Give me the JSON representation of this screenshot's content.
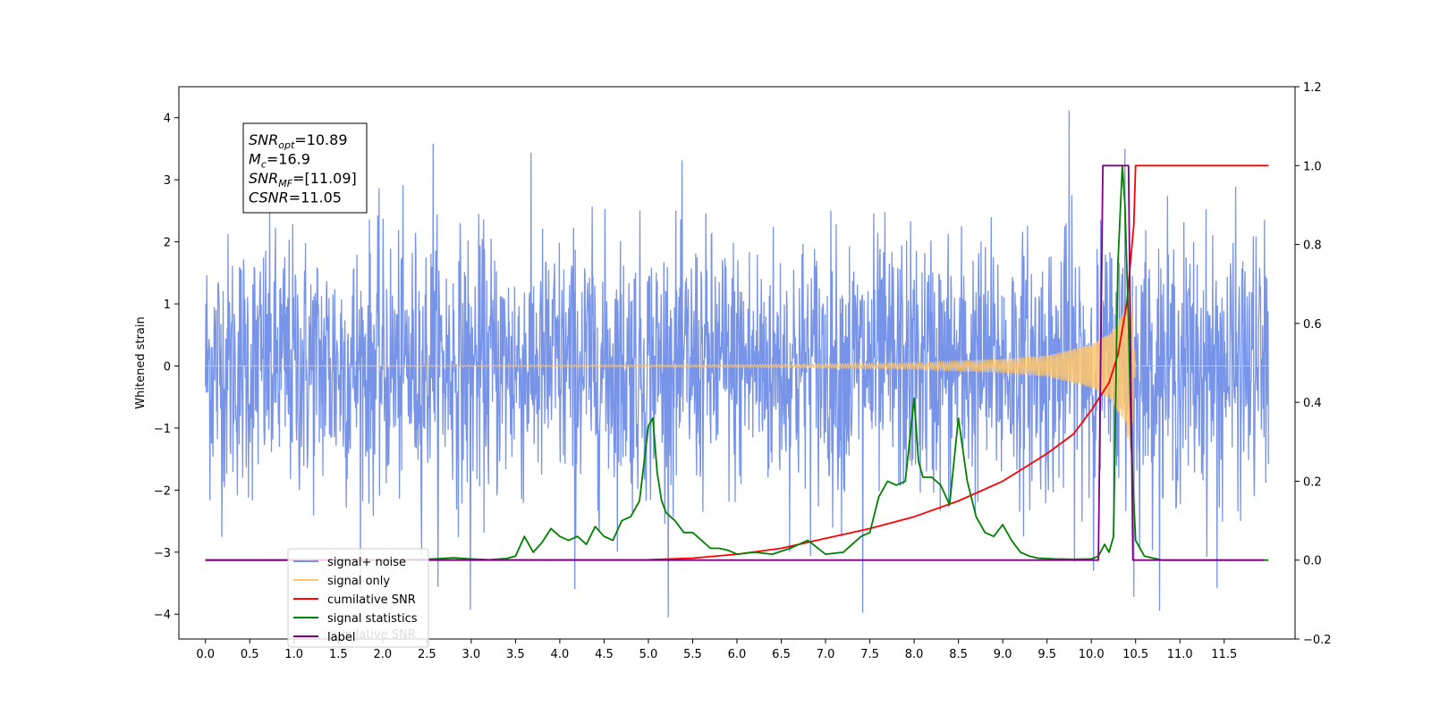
{
  "chart_data": {
    "type": "line",
    "ylabel": "Whitened strain",
    "x_ticks": [
      "0.0",
      "0.5",
      "1.0",
      "1.5",
      "2.0",
      "2.5",
      "3.0",
      "3.5",
      "4.0",
      "4.5",
      "5.0",
      "5.5",
      "6.0",
      "6.5",
      "7.0",
      "7.5",
      "8.0",
      "8.5",
      "9.0",
      "9.5",
      "10.0",
      "10.5",
      "11.0",
      "11.5"
    ],
    "xlim": [
      -0.3,
      12.3
    ],
    "left_axis": {
      "ylim": [
        -4.4,
        4.5
      ],
      "ticks": [
        "4",
        "3",
        "2",
        "1",
        "0",
        "−1",
        "−2",
        "−3",
        "−4"
      ]
    },
    "right_axis": {
      "ylim": [
        -0.2,
        1.2
      ],
      "ticks": [
        "1.2",
        "1.0",
        "0.8",
        "0.6",
        "0.4",
        "0.2",
        "0.0",
        "−0.2"
      ]
    },
    "annotation": {
      "lines": [
        {
          "base": "SNR",
          "sub": "opt",
          "value": "=10.89"
        },
        {
          "base": "M",
          "sub": "c",
          "value": "=16.9"
        },
        {
          "base": "SNR",
          "sub": "MF",
          "value": "=[11.09]"
        },
        {
          "base": "CSNR",
          "sub": "",
          "value": "=11.05"
        }
      ]
    },
    "legend": {
      "placement": "lower-left",
      "entries": [
        {
          "label": "signal+ noise",
          "color": "#7894e8"
        },
        {
          "label": "signal only",
          "color": "#ffc76b"
        },
        {
          "label": "cumilative SNR",
          "color": "#ff0000"
        },
        {
          "label": "signal statistics",
          "color": "#008000"
        },
        {
          "label": "label",
          "color": "#800080"
        }
      ],
      "ghost_text": "cumilative SNR"
    },
    "series": [
      {
        "name": "signal+ noise",
        "axis": "left",
        "color": "#7894e8",
        "noise": {
          "x_range": [
            0,
            12.0
          ],
          "sigma": 1.05,
          "samples": 2400
        },
        "spikes": [
          [
            9.75,
            4.12
          ],
          [
            10.38,
            3.5
          ],
          [
            10.48,
            -3.72
          ],
          [
            2.99,
            -3.93
          ],
          [
            7.42,
            -3.98
          ],
          [
            4.17,
            -3.6
          ],
          [
            11.42,
            -3.58
          ],
          [
            2.57,
            3.58
          ]
        ]
      },
      {
        "name": "signal only",
        "axis": "left",
        "color": "#ffc76b",
        "envelope": [
          [
            0.0,
            0.0
          ],
          [
            6.0,
            0.02
          ],
          [
            8.0,
            0.05
          ],
          [
            9.0,
            0.11
          ],
          [
            9.5,
            0.17
          ],
          [
            10.0,
            0.35
          ],
          [
            10.2,
            0.52
          ],
          [
            10.35,
            0.85
          ],
          [
            10.45,
            1.45
          ],
          [
            10.5,
            0.0
          ],
          [
            12.0,
            0.0
          ]
        ]
      },
      {
        "name": "cumilative SNR",
        "axis": "right",
        "color": "#ff0000",
        "x": [
          0.0,
          5.0,
          5.5,
          6.0,
          6.5,
          7.0,
          7.5,
          8.0,
          8.5,
          9.0,
          9.5,
          9.8,
          10.0,
          10.2,
          10.3,
          10.4,
          10.48,
          10.5,
          12.0
        ],
        "y": [
          0.0,
          0.001,
          0.005,
          0.015,
          0.03,
          0.055,
          0.08,
          0.11,
          0.15,
          0.2,
          0.27,
          0.32,
          0.38,
          0.45,
          0.52,
          0.65,
          0.85,
          1.0,
          1.0
        ]
      },
      {
        "name": "signal statistics",
        "axis": "right",
        "color": "#008000",
        "x": [
          0.0,
          1.0,
          2.0,
          2.5,
          2.8,
          3.0,
          3.2,
          3.4,
          3.5,
          3.6,
          3.7,
          3.8,
          3.9,
          4.0,
          4.1,
          4.2,
          4.3,
          4.4,
          4.5,
          4.6,
          4.7,
          4.8,
          4.9,
          5.0,
          5.05,
          5.1,
          5.15,
          5.2,
          5.3,
          5.4,
          5.5,
          5.6,
          5.7,
          5.8,
          5.9,
          6.0,
          6.2,
          6.4,
          6.6,
          6.8,
          7.0,
          7.2,
          7.3,
          7.4,
          7.5,
          7.6,
          7.7,
          7.8,
          7.9,
          8.0,
          8.05,
          8.1,
          8.2,
          8.3,
          8.4,
          8.5,
          8.6,
          8.7,
          8.8,
          8.9,
          9.0,
          9.1,
          9.2,
          9.3,
          9.4,
          9.6,
          9.8,
          10.0,
          10.08,
          10.15,
          10.2,
          10.25,
          10.3,
          10.35,
          10.38,
          10.42,
          10.45,
          10.5,
          10.6,
          10.8,
          11.0,
          12.0
        ],
        "y": [
          0.0,
          0.0,
          0.0,
          0.002,
          0.006,
          0.003,
          0.001,
          0.004,
          0.01,
          0.06,
          0.02,
          0.045,
          0.08,
          0.06,
          0.05,
          0.06,
          0.04,
          0.085,
          0.06,
          0.05,
          0.1,
          0.11,
          0.15,
          0.34,
          0.36,
          0.22,
          0.15,
          0.12,
          0.1,
          0.07,
          0.07,
          0.05,
          0.03,
          0.03,
          0.025,
          0.015,
          0.02,
          0.015,
          0.03,
          0.05,
          0.015,
          0.02,
          0.04,
          0.06,
          0.07,
          0.16,
          0.2,
          0.19,
          0.2,
          0.41,
          0.25,
          0.21,
          0.21,
          0.19,
          0.14,
          0.36,
          0.2,
          0.11,
          0.07,
          0.06,
          0.09,
          0.05,
          0.02,
          0.01,
          0.005,
          0.003,
          0.002,
          0.003,
          0.01,
          0.04,
          0.02,
          0.06,
          0.75,
          1.0,
          0.9,
          0.6,
          0.3,
          0.05,
          0.01,
          0.0,
          0.0,
          0.0
        ]
      },
      {
        "name": "label",
        "axis": "right",
        "color": "#800080",
        "x": [
          0.0,
          10.08,
          10.13,
          10.42,
          10.47,
          11.95
        ],
        "y": [
          0.0,
          0.0,
          1.0,
          1.0,
          0.0,
          0.0
        ]
      }
    ]
  }
}
